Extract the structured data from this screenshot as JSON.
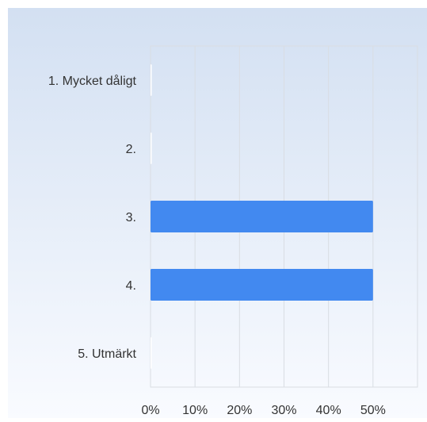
{
  "colors": {
    "bar": "#4289f0",
    "background_top": "#d3e0f2",
    "background_bottom": "#f9fbff",
    "grid": "#d9dde3",
    "zero_bar": "#ffffff"
  },
  "chart_data": {
    "type": "bar",
    "orientation": "horizontal",
    "title": "",
    "xlabel": "",
    "ylabel": "",
    "categories": [
      "1. Mycket dåligt",
      "2.",
      "3.",
      "4.",
      "5. Utmärkt"
    ],
    "values": [
      0,
      0,
      50,
      50,
      0
    ],
    "xlim": [
      0,
      60
    ],
    "x_ticks": [
      0,
      10,
      20,
      30,
      40,
      50
    ],
    "x_tick_labels": [
      "0%",
      "10%",
      "20%",
      "30%",
      "40%",
      "50%"
    ],
    "grid": true,
    "legend": "none"
  }
}
